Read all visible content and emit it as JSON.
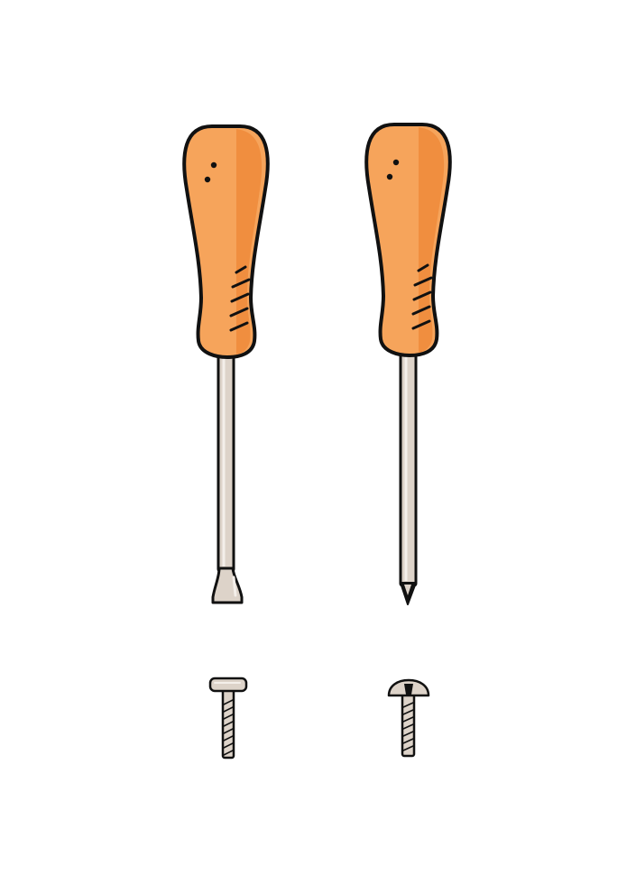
{
  "illustration": {
    "items": [
      {
        "icon": "flathead-screwdriver-icon"
      },
      {
        "icon": "phillips-screwdriver-icon"
      },
      {
        "icon": "flat-head-screw-icon"
      },
      {
        "icon": "round-head-screw-icon"
      }
    ],
    "colors": {
      "background": "#ffffff",
      "outline": "#111111",
      "handle_light": "#F6A45B",
      "handle_mid": "#F08C3C",
      "handle_shadow": "#E07627",
      "metal": "#DDD3C9",
      "metal_highlight": "#F4EFEA"
    }
  }
}
